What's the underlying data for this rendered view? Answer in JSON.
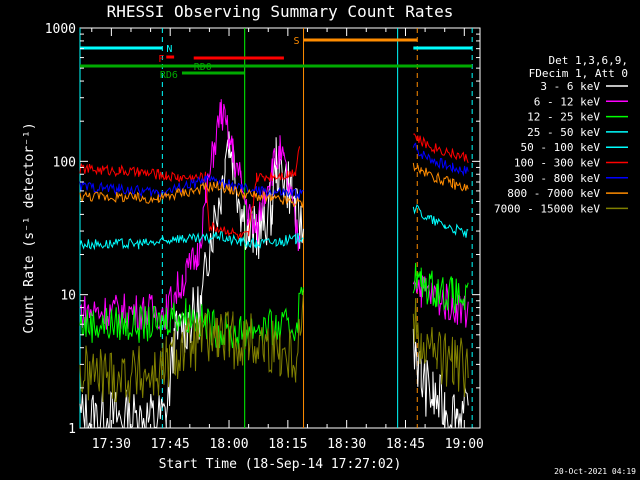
{
  "chart_data": {
    "type": "line",
    "title": "RHESSI Observing Summary Count Rates",
    "xlabel": "Start Time (18-Sep-14 17:27:02)",
    "ylabel": "Count Rate (s⁻¹ detector⁻¹)",
    "yscale": "log",
    "ylim": [
      1,
      1000
    ],
    "xlim_min": [
      -5,
      97
    ],
    "x_ticks": [
      {
        "min": 3,
        "label": "17:30"
      },
      {
        "min": 18,
        "label": "17:45"
      },
      {
        "min": 33,
        "label": "18:00"
      },
      {
        "min": 48,
        "label": "18:15"
      },
      {
        "min": 63,
        "label": "18:30"
      },
      {
        "min": 78,
        "label": "18:45"
      },
      {
        "min": 93,
        "label": "19:00"
      }
    ],
    "y_ticks": [
      {
        "value": 1,
        "label": "1"
      },
      {
        "value": 10,
        "label": "10"
      },
      {
        "value": 100,
        "label": "100"
      },
      {
        "value": 1000,
        "label": "1000"
      }
    ],
    "legend_header": [
      "Det 1,3,6,9,",
      "FDecim 1, Att 0"
    ],
    "legend_position": "right",
    "timestamp": "20-Oct-2021 04:19",
    "series": [
      {
        "name": "3 - 6 keV",
        "color": "#ffffff",
        "segments": [
          [
            [
              -5,
              1.2
            ],
            [
              5,
              1.2
            ],
            [
              10,
              1.15
            ],
            [
              17,
              1.2
            ],
            [
              19,
              4.5
            ],
            [
              22,
              6
            ],
            [
              26,
              8
            ],
            [
              28,
              25
            ],
            [
              31,
              60
            ],
            [
              32,
              120
            ],
            [
              33,
              145
            ],
            [
              34,
              110
            ],
            [
              36,
              45
            ],
            [
              38,
              30
            ],
            [
              40,
              28
            ],
            [
              42,
              35
            ],
            [
              44,
              45
            ],
            [
              45,
              100
            ],
            [
              46,
              85
            ],
            [
              47,
              80
            ],
            [
              49,
              60
            ],
            [
              50,
              40
            ],
            [
              51,
              32
            ],
            [
              52,
              30
            ]
          ],
          [
            [
              80,
              5
            ],
            [
              82,
              2.3
            ],
            [
              85,
              1.7
            ],
            [
              88,
              1.4
            ],
            [
              91,
              1.3
            ],
            [
              94,
              1.2
            ]
          ]
        ]
      },
      {
        "name": "6 - 12 keV",
        "color": "#ff00ff",
        "segments": [
          [
            [
              -5,
              7.5
            ],
            [
              17,
              7.5
            ],
            [
              19,
              10
            ],
            [
              22,
              14
            ],
            [
              25,
              20
            ],
            [
              27,
              50
            ],
            [
              29,
              120
            ],
            [
              31,
              240
            ],
            [
              32,
              190
            ],
            [
              34,
              115
            ],
            [
              36,
              70
            ],
            [
              38,
              40
            ],
            [
              40,
              30
            ],
            [
              42,
              60
            ],
            [
              44,
              90
            ],
            [
              46,
              115
            ],
            [
              47,
              95
            ],
            [
              49,
              50
            ],
            [
              50,
              30
            ],
            [
              51,
              25
            ]
          ],
          [
            [
              80,
              15
            ],
            [
              82,
              11
            ],
            [
              86,
              9.5
            ],
            [
              90,
              8.5
            ],
            [
              94,
              7.5
            ]
          ]
        ]
      },
      {
        "name": "12 - 25 keV",
        "color": "#00ff00",
        "segments": [
          [
            [
              -5,
              6
            ],
            [
              15,
              6
            ],
            [
              17,
              6.5
            ],
            [
              18,
              7
            ],
            [
              22,
              7.2
            ],
            [
              27,
              6
            ],
            [
              30,
              5.5
            ],
            [
              33,
              5
            ],
            [
              36,
              5.2
            ],
            [
              40,
              5.8
            ],
            [
              45,
              5.5
            ],
            [
              50,
              5.8
            ],
            [
              52,
              12
            ]
          ],
          [
            [
              80,
              14
            ],
            [
              82,
              12
            ],
            [
              86,
              11
            ],
            [
              90,
              10
            ],
            [
              94,
              9
            ]
          ]
        ]
      },
      {
        "name": "25 - 50 keV",
        "color": "#00ffff",
        "segments": [
          [
            [
              -5,
              24
            ],
            [
              10,
              24
            ],
            [
              17,
              25
            ],
            [
              19,
              27
            ],
            [
              22,
              26
            ],
            [
              27,
              26
            ],
            [
              30,
              28
            ],
            [
              33,
              26
            ],
            [
              36,
              25
            ],
            [
              40,
              24
            ],
            [
              45,
              25
            ],
            [
              50,
              26
            ],
            [
              52,
              28
            ]
          ],
          [
            [
              80,
              45
            ],
            [
              84,
              37
            ],
            [
              88,
              33
            ],
            [
              92,
              30
            ],
            [
              94,
              28
            ]
          ]
        ]
      },
      {
        "name": "50 - 100 keV",
        "color": "#00ffff",
        "segments": []
      },
      {
        "name": "100 - 300 keV",
        "color": "#ff0000",
        "segments": [
          [
            [
              -5,
              88
            ],
            [
              5,
              85
            ],
            [
              10,
              82
            ],
            [
              15,
              80
            ],
            [
              17,
              78
            ],
            [
              20,
              76
            ],
            [
              24,
              75
            ],
            [
              27,
              77
            ],
            [
              28,
              32
            ],
            [
              30,
              32
            ],
            [
              33,
              30
            ],
            [
              36,
              27
            ],
            [
              38,
              28
            ],
            [
              40,
              75
            ],
            [
              44,
              78
            ],
            [
              48,
              80
            ],
            [
              50,
              85
            ],
            [
              51,
              140
            ]
          ],
          [
            [
              80,
              160
            ],
            [
              82,
              140
            ],
            [
              86,
              125
            ],
            [
              90,
              115
            ],
            [
              94,
              105
            ]
          ]
        ]
      },
      {
        "name": "300 - 800 keV",
        "color": "#0000ff",
        "segments": [
          [
            [
              -5,
              65
            ],
            [
              5,
              62
            ],
            [
              10,
              60
            ],
            [
              15,
              58
            ],
            [
              17,
              60
            ],
            [
              20,
              63
            ],
            [
              24,
              68
            ],
            [
              27,
              72
            ],
            [
              30,
              70
            ],
            [
              33,
              67
            ],
            [
              36,
              63
            ],
            [
              40,
              60
            ],
            [
              45,
              58
            ],
            [
              50,
              57
            ],
            [
              52,
              58
            ]
          ],
          [
            [
              80,
              130
            ],
            [
              82,
              115
            ],
            [
              86,
              100
            ],
            [
              90,
              90
            ],
            [
              94,
              85
            ]
          ]
        ]
      },
      {
        "name": "800 - 7000 keV",
        "color": "#ff8c00",
        "segments": [
          [
            [
              -5,
              55
            ],
            [
              5,
              54
            ],
            [
              10,
              53
            ],
            [
              15,
              52
            ],
            [
              17,
              54
            ],
            [
              20,
              58
            ],
            [
              24,
              60
            ],
            [
              27,
              64
            ],
            [
              30,
              66
            ],
            [
              33,
              62
            ],
            [
              36,
              58
            ],
            [
              40,
              55
            ],
            [
              44,
              52
            ],
            [
              48,
              50
            ],
            [
              52,
              48
            ]
          ],
          [
            [
              80,
              95
            ],
            [
              82,
              85
            ],
            [
              86,
              75
            ],
            [
              90,
              68
            ],
            [
              94,
              62
            ]
          ]
        ]
      },
      {
        "name": "7000 - 15000 keV",
        "color": "#808000",
        "segments": [
          [
            [
              -5,
              2.5
            ],
            [
              15,
              2.5
            ],
            [
              17,
              3
            ],
            [
              19,
              3.5
            ],
            [
              22,
              4
            ],
            [
              26,
              4.5
            ],
            [
              30,
              4.8
            ],
            [
              34,
              4.6
            ],
            [
              38,
              4.5
            ],
            [
              42,
              4.2
            ],
            [
              46,
              3.9
            ],
            [
              50,
              3.5
            ],
            [
              52,
              8
            ]
          ],
          [
            [
              80,
              7
            ],
            [
              82,
              4.5
            ],
            [
              86,
              3.5
            ],
            [
              90,
              3
            ],
            [
              94,
              2.8
            ]
          ]
        ]
      }
    ],
    "flag_bars": [
      {
        "label": "N",
        "color": "#00ffff",
        "y": 0,
        "spans": [
          [
            -5,
            16
          ],
          [
            80,
            95
          ]
        ]
      },
      {
        "label": "S",
        "color": "#ff8c00",
        "y": 1,
        "spans": [
          [
            52,
            81
          ]
        ]
      },
      {
        "label": "F",
        "color": "#ff0000",
        "y": 2,
        "spans": [
          [
            17,
            19
          ]
        ]
      },
      {
        "label": "",
        "color": "#ff0000",
        "y": 3,
        "spans": [
          [
            24,
            47
          ]
        ]
      },
      {
        "label": "RD0",
        "color": "#00aa00",
        "y": 4,
        "spans": [
          [
            -5,
            95
          ]
        ]
      },
      {
        "label": "RD6",
        "color": "#00aa00",
        "y": 5,
        "spans": [
          [
            21,
            37
          ]
        ]
      }
    ],
    "vlines": [
      {
        "min": -5,
        "color": "#00ffff",
        "style": "solid"
      },
      {
        "min": 16,
        "color": "#00ffff",
        "style": "dashed"
      },
      {
        "min": 37,
        "color": "#00ff00",
        "style": "solid"
      },
      {
        "min": 52,
        "color": "#ff8c00",
        "style": "solid"
      },
      {
        "min": 76,
        "color": "#00ffff",
        "style": "solid"
      },
      {
        "min": 81,
        "color": "#ff8c00",
        "style": "dashed"
      },
      {
        "min": 95,
        "color": "#00ffff",
        "style": "dashed"
      }
    ]
  }
}
